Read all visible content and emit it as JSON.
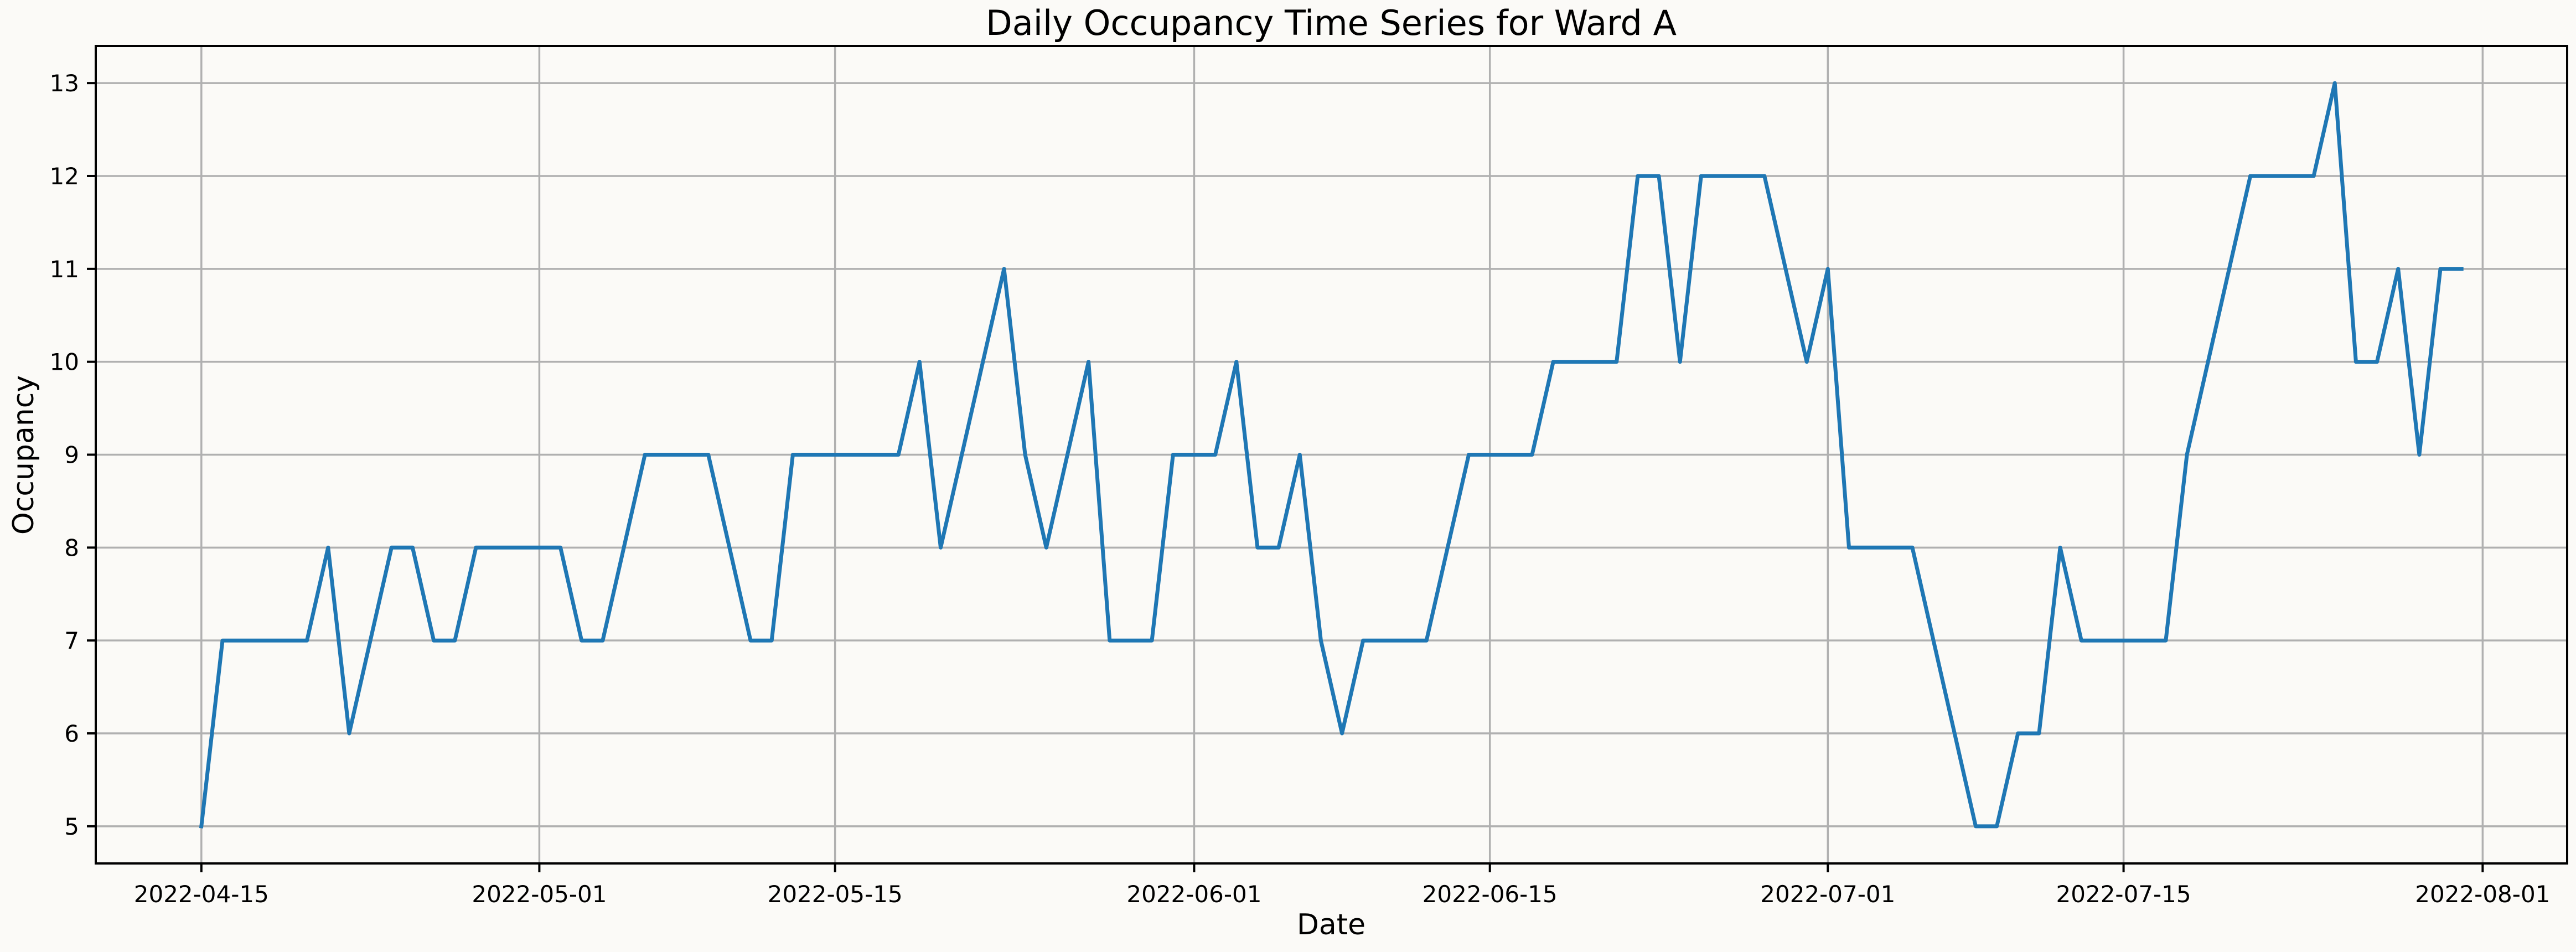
{
  "chart_data": {
    "type": "line",
    "title": "Daily Occupancy Time Series for Ward A",
    "xlabel": "Date",
    "ylabel": "Occupancy",
    "xlim": [
      "2022-04-10",
      "2022-08-05"
    ],
    "ylim": [
      4.6,
      13.4
    ],
    "x_ticks": [
      "2022-04-15",
      "2022-05-01",
      "2022-05-15",
      "2022-06-01",
      "2022-06-15",
      "2022-07-01",
      "2022-07-15",
      "2022-08-01"
    ],
    "y_ticks": [
      5,
      6,
      7,
      8,
      9,
      10,
      11,
      12,
      13
    ],
    "grid": true,
    "colors": {
      "line": "#1f77b4",
      "background": "#fbfaf7",
      "grid": "#b0b0b0"
    },
    "series": [
      {
        "x": [
          "2022-04-15",
          "2022-04-16",
          "2022-04-17",
          "2022-04-18",
          "2022-04-19",
          "2022-04-20",
          "2022-04-21",
          "2022-04-22",
          "2022-04-23",
          "2022-04-24",
          "2022-04-25",
          "2022-04-26",
          "2022-04-27",
          "2022-04-28",
          "2022-04-29",
          "2022-04-30",
          "2022-05-01",
          "2022-05-02",
          "2022-05-03",
          "2022-05-04",
          "2022-05-05",
          "2022-05-06",
          "2022-05-07",
          "2022-05-08",
          "2022-05-09",
          "2022-05-10",
          "2022-05-11",
          "2022-05-12",
          "2022-05-13",
          "2022-05-14",
          "2022-05-15",
          "2022-05-16",
          "2022-05-17",
          "2022-05-18",
          "2022-05-19",
          "2022-05-20",
          "2022-05-21",
          "2022-05-22",
          "2022-05-23",
          "2022-05-24",
          "2022-05-25",
          "2022-05-26",
          "2022-05-27",
          "2022-05-28",
          "2022-05-29",
          "2022-05-30",
          "2022-05-31",
          "2022-06-01",
          "2022-06-02",
          "2022-06-03",
          "2022-06-04",
          "2022-06-05",
          "2022-06-06",
          "2022-06-07",
          "2022-06-08",
          "2022-06-09",
          "2022-06-10",
          "2022-06-11",
          "2022-06-12",
          "2022-06-13",
          "2022-06-14",
          "2022-06-15",
          "2022-06-16",
          "2022-06-17",
          "2022-06-18",
          "2022-06-19",
          "2022-06-20",
          "2022-06-21",
          "2022-06-22",
          "2022-06-23",
          "2022-06-24",
          "2022-06-25",
          "2022-06-26",
          "2022-06-27",
          "2022-06-28",
          "2022-06-29",
          "2022-06-30",
          "2022-07-01",
          "2022-07-02",
          "2022-07-03",
          "2022-07-04",
          "2022-07-05",
          "2022-07-06",
          "2022-07-07",
          "2022-07-08",
          "2022-07-09",
          "2022-07-10",
          "2022-07-11",
          "2022-07-12",
          "2022-07-13",
          "2022-07-14",
          "2022-07-15",
          "2022-07-16",
          "2022-07-17",
          "2022-07-18",
          "2022-07-19",
          "2022-07-20",
          "2022-07-21",
          "2022-07-22",
          "2022-07-23",
          "2022-07-24",
          "2022-07-25",
          "2022-07-26",
          "2022-07-27",
          "2022-07-28",
          "2022-07-29",
          "2022-07-30",
          "2022-07-31"
        ],
        "values": [
          5,
          7,
          7,
          7,
          7,
          7,
          8,
          6,
          7,
          8,
          8,
          7,
          7,
          8,
          8,
          8,
          8,
          8,
          7,
          7,
          8,
          9,
          9,
          9,
          9,
          8,
          7,
          7,
          9,
          9,
          9,
          9,
          9,
          9,
          10,
          8,
          9,
          10,
          11,
          9,
          8,
          9,
          10,
          7,
          7,
          7,
          9,
          9,
          9,
          10,
          8,
          8,
          9,
          7,
          6,
          7,
          7,
          7,
          7,
          8,
          9,
          9,
          9,
          9,
          10,
          10,
          10,
          10,
          12,
          12,
          10,
          12,
          12,
          12,
          12,
          11,
          10,
          11,
          8,
          8,
          8,
          8,
          7,
          6,
          5,
          5,
          6,
          6,
          8,
          7,
          7,
          7,
          7,
          7,
          9,
          10,
          11,
          12,
          12,
          12,
          12,
          13,
          10,
          10,
          11,
          9,
          11,
          11
        ]
      }
    ]
  }
}
